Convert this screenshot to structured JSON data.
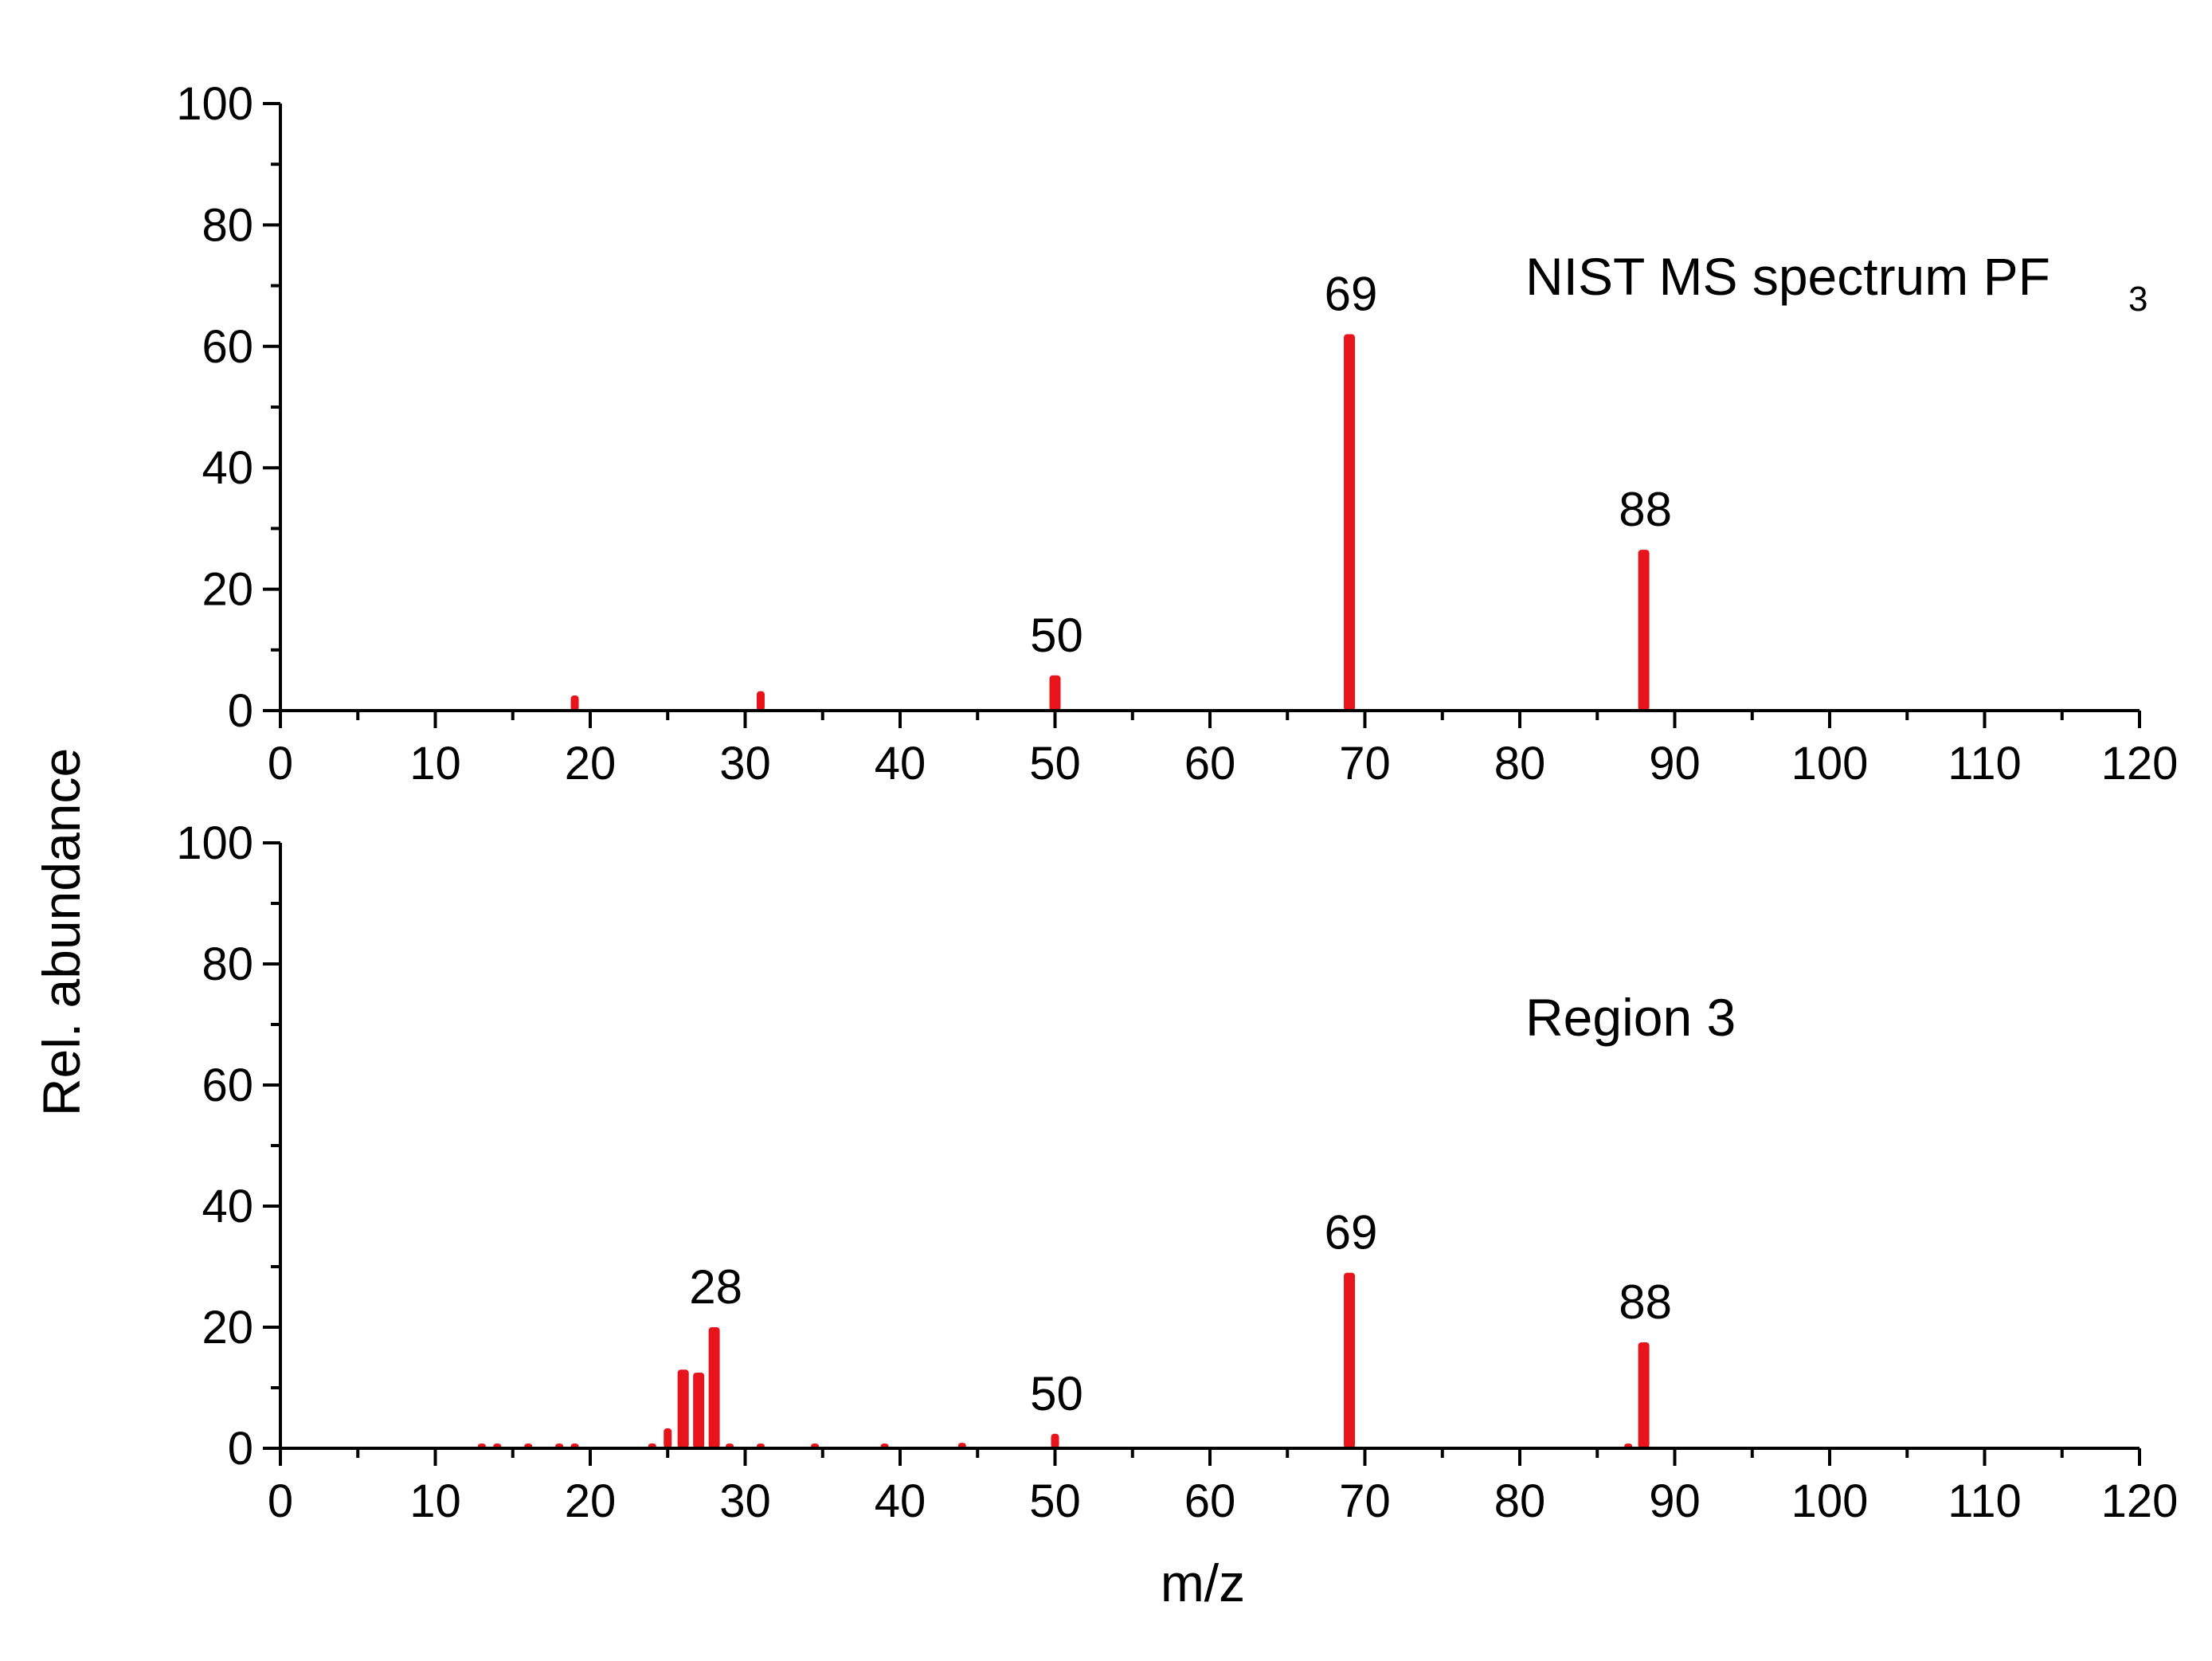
{
  "figure": {
    "ylabel": "Rel. abundance",
    "xlabel": "m/z",
    "bar_color": "#e8141b",
    "axis_color": "#000000"
  },
  "chart_data": [
    {
      "type": "bar",
      "title": "NIST MS spectrum PF",
      "title_subscript": "3",
      "xlim": [
        0,
        120
      ],
      "ylim": [
        0,
        100
      ],
      "xticks": [
        0,
        10,
        20,
        30,
        40,
        50,
        60,
        70,
        80,
        90,
        100,
        110,
        120
      ],
      "yticks": [
        0,
        20,
        40,
        60,
        80,
        100
      ],
      "x": [
        19,
        31,
        50,
        69,
        88
      ],
      "values": [
        2.5,
        3.2,
        5.8,
        62,
        26.5
      ],
      "peak_labels": [
        {
          "x": 50,
          "y": 5.8,
          "text": "50"
        },
        {
          "x": 69,
          "y": 62,
          "text": "69"
        },
        {
          "x": 88,
          "y": 26.5,
          "text": "88"
        }
      ]
    },
    {
      "type": "bar",
      "title": "Region 3",
      "xlim": [
        0,
        120
      ],
      "ylim": [
        0,
        100
      ],
      "xticks": [
        0,
        10,
        20,
        30,
        40,
        50,
        60,
        70,
        80,
        90,
        100,
        110,
        120
      ],
      "yticks": [
        0,
        20,
        40,
        60,
        80,
        100
      ],
      "x": [
        13,
        14,
        16,
        18,
        19,
        24,
        25,
        26,
        27,
        28,
        29,
        31,
        34.5,
        39,
        44,
        50,
        69,
        87,
        88
      ],
      "values": [
        0.4,
        0.6,
        0.4,
        0.5,
        0.4,
        0.8,
        3.3,
        13,
        12.5,
        20,
        0.4,
        0.7,
        0.4,
        0.3,
        0.9,
        2.4,
        29,
        0.3,
        17.5
      ],
      "peak_labels": [
        {
          "x": 28,
          "y": 20,
          "text": "28"
        },
        {
          "x": 50,
          "y": 2.4,
          "text": "50"
        },
        {
          "x": 69,
          "y": 29,
          "text": "69"
        },
        {
          "x": 88,
          "y": 17.5,
          "text": "88"
        }
      ]
    }
  ]
}
